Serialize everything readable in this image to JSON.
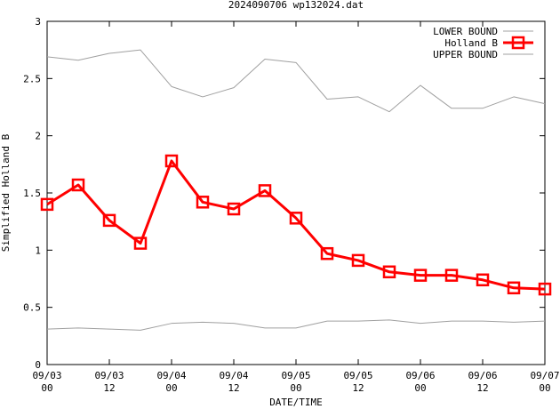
{
  "chart_data": {
    "type": "line",
    "title": "2024090706 wp132024.dat",
    "xlabel": "DATE/TIME",
    "ylabel": "Simplified Holland B",
    "xlim": [
      0,
      96
    ],
    "ylim": [
      0,
      3
    ],
    "yticks": [
      "0",
      "0.5",
      "1",
      "1.5",
      "2",
      "2.5",
      "3"
    ],
    "yticks_values": [
      0,
      0.5,
      1,
      1.5,
      2,
      2.5,
      3
    ],
    "xticks": [
      {
        "h": 0,
        "date": "09/03",
        "time": "00"
      },
      {
        "h": 12,
        "date": "09/03",
        "time": "12"
      },
      {
        "h": 24,
        "date": "09/04",
        "time": "00"
      },
      {
        "h": 36,
        "date": "09/04",
        "time": "12"
      },
      {
        "h": 48,
        "date": "09/05",
        "time": "00"
      },
      {
        "h": 60,
        "date": "09/05",
        "time": "12"
      },
      {
        "h": 72,
        "date": "09/06",
        "time": "00"
      },
      {
        "h": 84,
        "date": "09/06",
        "time": "12"
      },
      {
        "h": 96,
        "date": "09/07",
        "time": "00"
      }
    ],
    "x": [
      0,
      6,
      12,
      18,
      24,
      30,
      36,
      42,
      48,
      54,
      60,
      66,
      72,
      78,
      84,
      90,
      96
    ],
    "series": [
      {
        "name": "LOWER BOUND",
        "color": "#a0a0a0",
        "marker": "none",
        "values": [
          0.31,
          0.32,
          0.31,
          0.3,
          0.36,
          0.37,
          0.36,
          0.32,
          0.32,
          0.38,
          0.38,
          0.39,
          0.36,
          0.38,
          0.38,
          0.37,
          0.38
        ]
      },
      {
        "name": "Holland B",
        "color": "#ff0000",
        "marker": "square",
        "values": [
          1.4,
          1.57,
          1.26,
          1.06,
          1.78,
          1.42,
          1.36,
          1.52,
          1.28,
          0.97,
          0.91,
          0.81,
          0.78,
          0.78,
          0.74,
          0.67,
          0.66
        ]
      },
      {
        "name": "UPPER BOUND",
        "color": "#a0a0a0",
        "marker": "none",
        "values": [
          2.69,
          2.66,
          2.72,
          2.75,
          2.43,
          2.34,
          2.42,
          2.67,
          2.64,
          2.32,
          2.34,
          2.21,
          2.44,
          2.24,
          2.24,
          2.34,
          2.28
        ]
      }
    ],
    "grid": false,
    "legend": "top-right"
  }
}
